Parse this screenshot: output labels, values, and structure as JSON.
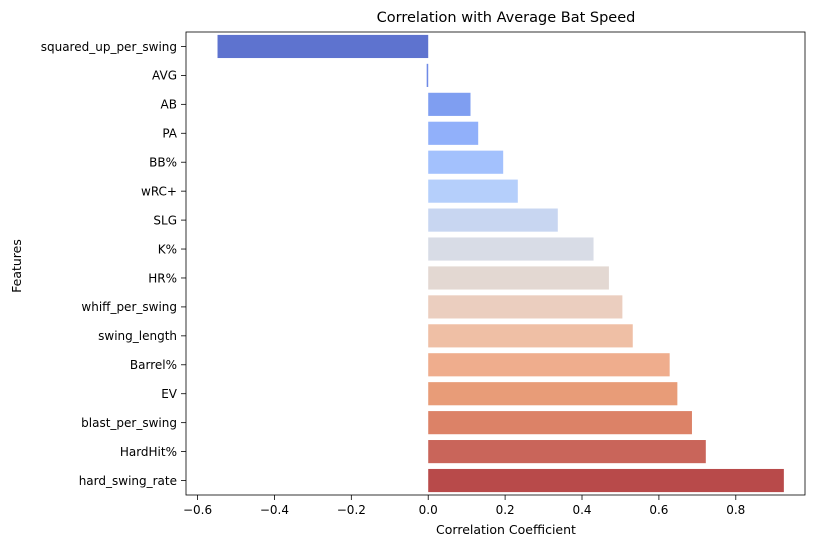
{
  "chart_data": {
    "type": "bar",
    "orientation": "horizontal",
    "title": "Correlation with Average Bat Speed",
    "xlabel": "Correlation Coefficient",
    "ylabel": "Features",
    "xlim": [
      -0.63,
      0.98
    ],
    "xticks": [
      {
        "value": -0.6,
        "label": "−0.6"
      },
      {
        "value": -0.4,
        "label": "−0.4"
      },
      {
        "value": -0.2,
        "label": "−0.2"
      },
      {
        "value": 0.0,
        "label": "0.0"
      },
      {
        "value": 0.2,
        "label": "0.2"
      },
      {
        "value": 0.4,
        "label": "0.4"
      },
      {
        "value": 0.6,
        "label": "0.6"
      },
      {
        "value": 0.8,
        "label": "0.8"
      }
    ],
    "grid": false,
    "colormap": "coolwarm",
    "categories": [
      "squared_up_per_swing",
      "AVG",
      "AB",
      "PA",
      "BB%",
      "wRC+",
      "SLG",
      "K%",
      "HR%",
      "whiff_per_swing",
      "swing_length",
      "Barrel%",
      "EV",
      "blast_per_swing",
      "HardHit%",
      "hard_swing_rate"
    ],
    "values": [
      -0.548,
      -0.004,
      0.11,
      0.13,
      0.195,
      0.233,
      0.337,
      0.43,
      0.47,
      0.505,
      0.532,
      0.628,
      0.648,
      0.686,
      0.722,
      0.925
    ],
    "colors": [
      "#5e73cf",
      "#6f8ae6",
      "#7f9ef1",
      "#91b0fa",
      "#a3c1fd",
      "#b5cffb",
      "#c8d6f1",
      "#d8dce6",
      "#e3d8d2",
      "#ebcebf",
      "#efbfa5",
      "#efad8d",
      "#e89c78",
      "#dc8267",
      "#c9655a",
      "#b84a4a"
    ]
  }
}
